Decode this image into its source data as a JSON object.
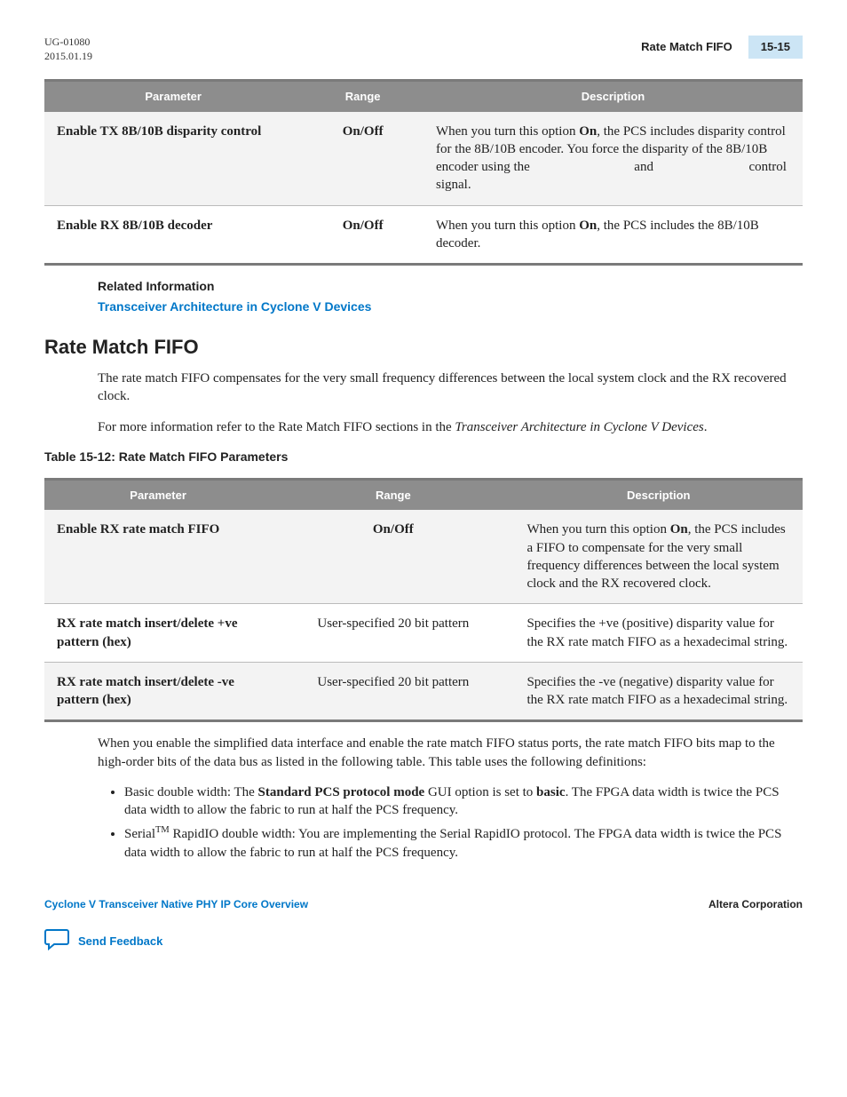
{
  "header": {
    "doc_id": "UG-01080",
    "date": "2015.01.19",
    "title": "Rate Match FIFO",
    "page": "15-15"
  },
  "table1": {
    "headers": [
      "Parameter",
      "Range",
      "Description"
    ],
    "rows": [
      {
        "param": "Enable TX 8B/10B disparity control",
        "range": "On/Off",
        "desc": "When you turn this option <b>On</b>, the PCS includes disparity control for the 8B/10B encoder. You force the disparity of the 8B/10B encoder using the <span style='display:inline-block;width:110px'></span> and <span style='display:inline-block;width:100px'></span> control signal."
      },
      {
        "param": "Enable RX 8B/10B decoder",
        "range": "On/Off",
        "desc": "When you turn this option <b>On</b>, the PCS includes the 8B/10B decoder."
      }
    ]
  },
  "related": {
    "heading": "Related Information",
    "link": "Transceiver Architecture in Cyclone V Devices"
  },
  "section": {
    "title": "Rate Match FIFO",
    "p1": "The rate match FIFO compensates for the very small frequency differences between the local system clock and the RX recovered clock.",
    "p2": "For more information refer to the Rate Match FIFO sections in the <span class='italic'>Transceiver Architecture in Cyclone V Devices</span>."
  },
  "table2": {
    "caption": "Table 15-12: Rate Match FIFO Parameters",
    "headers": [
      "Parameter",
      "Range",
      "Description"
    ],
    "rows": [
      {
        "param": "Enable RX rate match FIFO",
        "range": "On/Off",
        "desc": "When you turn this option <b>On</b>, the PCS includes a FIFO to compensate for the very small frequency differences between the local system clock and the RX recovered clock."
      },
      {
        "param": "RX rate match insert/delete +ve pattern (hex)",
        "range": "User-specified 20 bit pattern",
        "desc": "Specifies the +ve (positive) disparity value for the RX rate match FIFO as a hexadecimal string."
      },
      {
        "param": "RX rate match insert/delete -ve pattern (hex)",
        "range": "User-specified 20 bit pattern",
        "desc": "Specifies the -ve (negative) disparity value for the RX rate match FIFO as a hexadecimal string."
      }
    ]
  },
  "after_table_p": "When you enable the simplified data interface and enable the rate match FIFO status ports, the rate match FIFO bits map to the high-order bits of the data bus as listed in the following table. This table uses the following definitions:",
  "bullets": [
    "Basic double width: The <b>Standard PCS protocol mode</b> GUI option is set to <b>basic</b>. The FPGA data width is twice the PCS data width to allow the fabric to run at half the PCS frequency.",
    "Serial<sup>TM</sup> RapidIO double width: You are implementing the Serial RapidIO protocol. The FPGA data width is twice the PCS data width to allow the fabric to run at half the PCS frequency."
  ],
  "footer": {
    "left": "Cyclone V Transceiver Native PHY IP Core Overview",
    "right": "Altera Corporation",
    "feedback": "Send Feedback"
  }
}
